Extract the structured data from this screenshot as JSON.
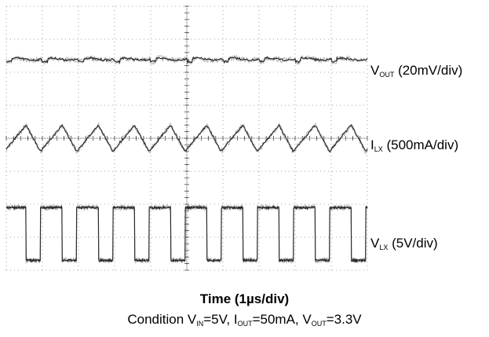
{
  "chart_data": {
    "type": "line",
    "title": "",
    "xlabel": "Time (1µs/div)",
    "condition": {
      "prefix": "Condition ",
      "vin_main": "V",
      "vin_sub": "IN",
      "vin_val": "=5V, ",
      "iout_main": "I",
      "iout_sub": "OUT",
      "iout_val": "=50mA, ",
      "vout_main": "V",
      "vout_sub": "OUT",
      "vout_val": "=3.3V"
    },
    "grid": true,
    "x_divisions": 10,
    "y_divisions": 8,
    "x_units_per_div": "1µs",
    "series": [
      {
        "name_main": "V",
        "name_sub": "OUT",
        "scale": " (20mV/div)",
        "waveform": "ripple",
        "level_div": 6.4,
        "period_div": 1.0
      },
      {
        "name_main": "I",
        "name_sub": "LX",
        "scale": " (500mA/div)",
        "waveform": "triangle",
        "min_div": 3.6,
        "max_div": 4.4,
        "period_div": 1.0
      },
      {
        "name_main": "V",
        "name_sub": "LX",
        "scale": " (5V/div)",
        "waveform": "square",
        "low_div": 0.3,
        "high_div": 1.9,
        "period_div": 1.0,
        "duty": 0.6
      }
    ]
  }
}
